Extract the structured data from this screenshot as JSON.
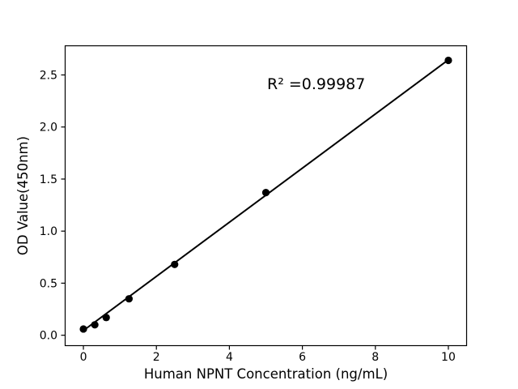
{
  "figure": {
    "background_color": "#ffffff",
    "foreground_color": "#000000"
  },
  "chart_data": {
    "type": "scatter",
    "title": "",
    "xlabel": "Human NPNT Concentration (ng/mL)",
    "ylabel": "OD Value(450nm)",
    "annotation": "R² =0.99987",
    "x": [
      0,
      0.3125,
      0.625,
      1.25,
      2.5,
      5,
      10
    ],
    "y": [
      0.06,
      0.1,
      0.17,
      0.35,
      0.68,
      1.37,
      2.64
    ],
    "trendline": {
      "x": [
        0,
        10
      ],
      "y": [
        0.045,
        2.645
      ]
    },
    "xlim": [
      -0.5,
      10.5
    ],
    "ylim": [
      -0.1,
      2.78
    ],
    "xticks": [
      0,
      2,
      4,
      6,
      8,
      10
    ],
    "xtick_labels": [
      "0",
      "2",
      "4",
      "6",
      "8",
      "10"
    ],
    "yticks": [
      0.0,
      0.5,
      1.0,
      1.5,
      2.0,
      2.5
    ],
    "ytick_labels": [
      "0.0",
      "0.5",
      "1.0",
      "1.5",
      "2.0",
      "2.5"
    ],
    "grid": false,
    "legend": "none",
    "line_color": "#000000",
    "marker_color": "#000000"
  }
}
